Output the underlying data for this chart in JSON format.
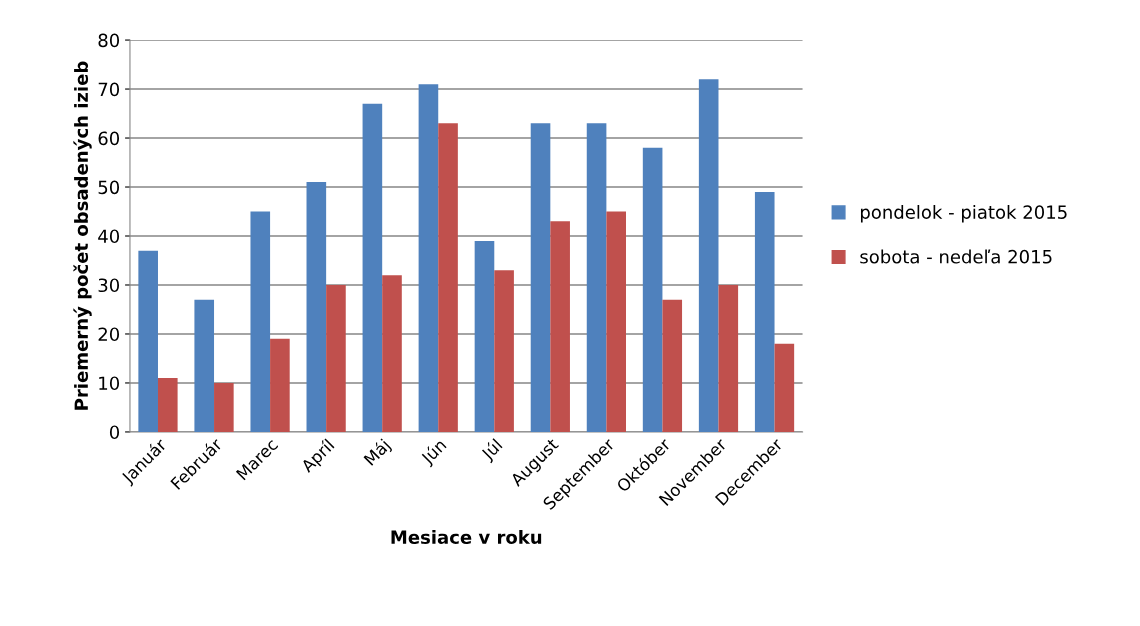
{
  "chart_data": {
    "type": "bar",
    "xlabel": "Mesiace v roku",
    "ylabel": "Priemerný počet obsadených izieb",
    "categories": [
      "Január",
      "Február",
      "Marec",
      "Apríl",
      "Máj",
      "Jún",
      "Júl",
      "August",
      "September",
      "Október",
      "November",
      "December"
    ],
    "series": [
      {
        "name": "pondelok - piatok 2015",
        "color": "#4f81bd",
        "values": [
          37,
          27,
          45,
          51,
          67,
          71,
          39,
          63,
          63,
          58,
          72,
          49
        ]
      },
      {
        "name": "sobota - nedeľa 2015",
        "color": "#c0504d",
        "values": [
          11,
          10,
          19,
          30,
          32,
          63,
          33,
          43,
          45,
          27,
          30,
          18
        ]
      }
    ],
    "ylim": [
      0,
      80
    ],
    "yticks": [
      0,
      10,
      20,
      30,
      40,
      50,
      60,
      70,
      80
    ],
    "grid": "y",
    "legend": "right"
  }
}
